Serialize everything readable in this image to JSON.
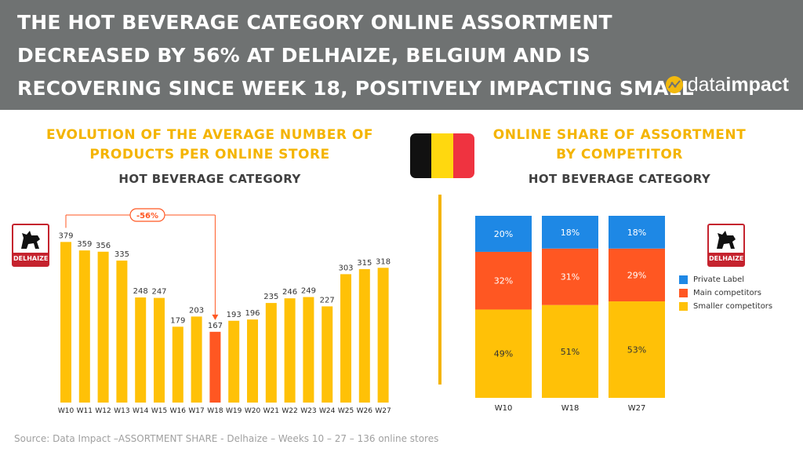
{
  "header": {
    "title": "THE HOT BEVERAGE CATEGORY ONLINE ASSORTMENT DECREASED BY 56% AT DELHAIZE, BELGIUM AND IS RECOVERING SINCE WEEK 18, POSITIVELY IMPACTING SMALL LABELS",
    "logo_prefix": "data",
    "logo_suffix": "impact"
  },
  "left_panel": {
    "title": "EVOLUTION OF THE AVERAGE NUMBER OF PRODUCTS PER ONLINE STORE",
    "subtitle": "HOT BEVERAGE  CATEGORY",
    "brand_label": "DELHAIZE",
    "annotation": "-56%"
  },
  "right_panel": {
    "title": "ONLINE SHARE OF ASSORTMENT BY COMPETITOR",
    "subtitle": "HOT BEVERAGE  CATEGORY",
    "brand_label": "DELHAIZE"
  },
  "source": "Source: Data Impact –ASSORTMENT SHARE -  Delhaize – Weeks 10 – 27 – 136 online stores",
  "colors": {
    "accent": "#f4b400",
    "bar": "#ffc107",
    "highlight": "#ff5722",
    "private_label": "#1e88e5",
    "main_competitors": "#ff5722",
    "smaller_competitors": "#ffc107",
    "flag_black": "#111111",
    "flag_yellow": "#ffd80f",
    "flag_red": "#ef3340"
  },
  "chart_data": [
    {
      "type": "bar",
      "categories": [
        "W10",
        "W11",
        "W12",
        "W13",
        "W14",
        "W15",
        "W16",
        "W17",
        "W18",
        "W19",
        "W20",
        "W21",
        "W22",
        "W23",
        "W24",
        "W25",
        "W26",
        "W27"
      ],
      "values": [
        379,
        359,
        356,
        335,
        248,
        247,
        179,
        203,
        167,
        193,
        196,
        235,
        246,
        249,
        227,
        303,
        315,
        318
      ],
      "highlight": "W18",
      "ylim": [
        0,
        400
      ],
      "grid": false
    },
    {
      "type": "bar",
      "stacked": true,
      "categories": [
        "W10",
        "W18",
        "W27"
      ],
      "series": [
        {
          "name": "Smaller competitors",
          "values": [
            49,
            51,
            53
          ]
        },
        {
          "name": "Main competitors",
          "values": [
            32,
            31,
            29
          ]
        },
        {
          "name": "Private Label",
          "values": [
            20,
            18,
            18
          ]
        }
      ],
      "legend_position": "right",
      "grid": false
    }
  ]
}
